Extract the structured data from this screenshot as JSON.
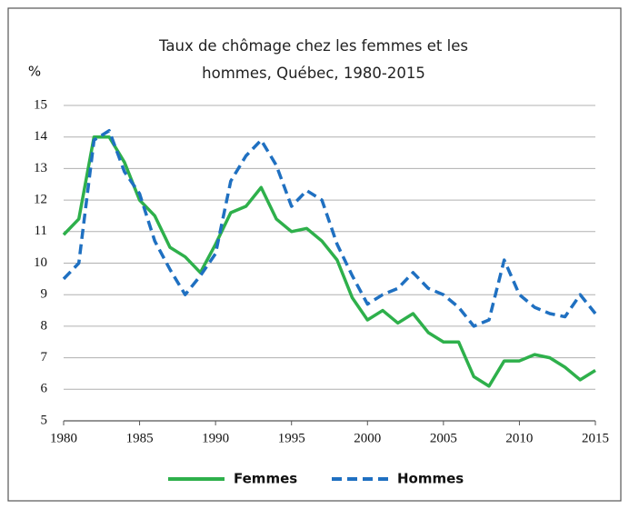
{
  "chart_data": {
    "type": "line",
    "title": "Taux de chômage chez les femmes et les hommes, Québec, 1980-2015",
    "y_label": "%",
    "x": [
      1980,
      1981,
      1982,
      1983,
      1984,
      1985,
      1986,
      1987,
      1988,
      1989,
      1990,
      1991,
      1992,
      1993,
      1994,
      1995,
      1996,
      1997,
      1998,
      1999,
      2000,
      2001,
      2002,
      2003,
      2004,
      2005,
      2006,
      2007,
      2008,
      2009,
      2010,
      2011,
      2012,
      2013,
      2014,
      2015
    ],
    "series": [
      {
        "name": "Femmes",
        "color": "#2eb04b",
        "dashed": false,
        "values": [
          10.9,
          11.4,
          14.0,
          14.0,
          13.2,
          12.0,
          11.5,
          10.5,
          10.2,
          9.7,
          10.6,
          11.6,
          11.8,
          12.4,
          11.4,
          11.0,
          11.1,
          10.7,
          10.1,
          8.9,
          8.2,
          8.5,
          8.1,
          8.4,
          7.8,
          7.5,
          7.5,
          6.4,
          6.1,
          6.9,
          6.9,
          7.1,
          7.0,
          6.7,
          6.3,
          6.6
        ]
      },
      {
        "name": "Hommes",
        "color": "#1f70c1",
        "dashed": true,
        "values": [
          9.5,
          10.0,
          13.9,
          14.2,
          12.9,
          12.2,
          10.7,
          9.8,
          9.0,
          9.6,
          10.3,
          12.6,
          13.4,
          13.9,
          13.1,
          11.8,
          12.3,
          12.0,
          10.6,
          9.6,
          8.7,
          9.0,
          9.2,
          9.7,
          9.2,
          9.0,
          8.6,
          8.0,
          8.2,
          10.1,
          9.0,
          8.6,
          8.4,
          8.3,
          9.0,
          8.4
        ]
      }
    ],
    "xlim": [
      1980,
      2015
    ],
    "xticks": [
      1980,
      1985,
      1990,
      1995,
      2000,
      2005,
      2010,
      2015
    ],
    "ylim": [
      5,
      15
    ],
    "yticks": [
      5,
      6,
      7,
      8,
      9,
      10,
      11,
      12,
      13,
      14,
      15
    ],
    "grid": true,
    "legend": "bottom"
  }
}
